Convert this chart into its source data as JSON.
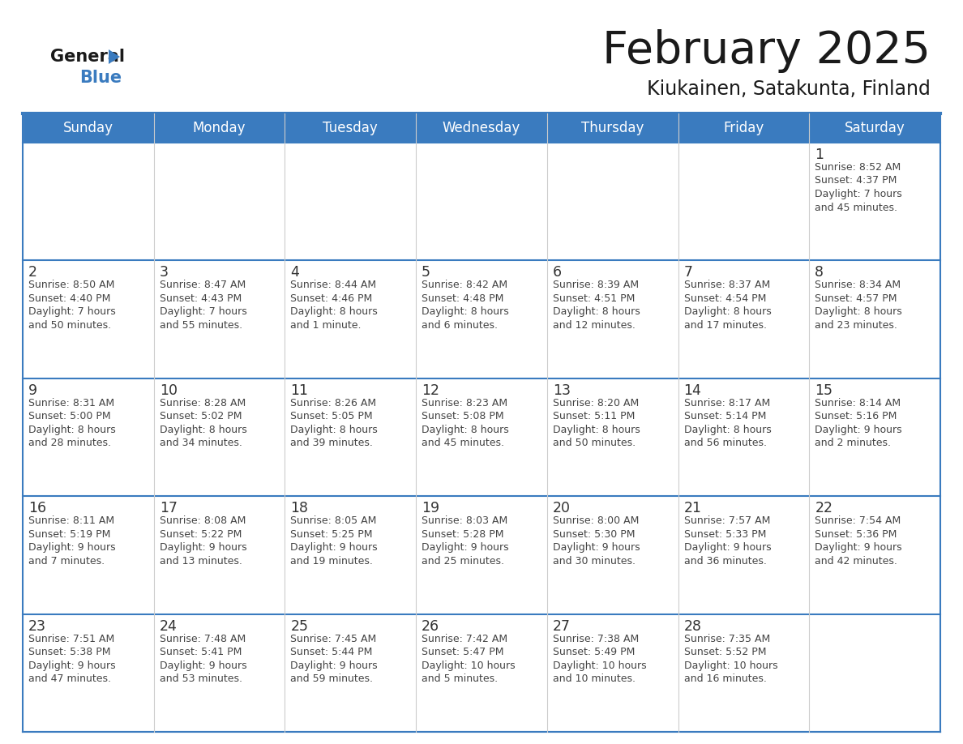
{
  "title": "February 2025",
  "subtitle": "Kiukainen, Satakunta, Finland",
  "days_of_week": [
    "Sunday",
    "Monday",
    "Tuesday",
    "Wednesday",
    "Thursday",
    "Friday",
    "Saturday"
  ],
  "header_bg": "#3a7bbf",
  "header_text": "#ffffff",
  "cell_bg": "#ffffff",
  "border_color": "#3a7bbf",
  "row_separator_color": "#3a7bbf",
  "text_color": "#444444",
  "day_number_color": "#333333",
  "title_color": "#1a1a1a",
  "logo_general_color": "#1a1a1a",
  "logo_blue_color": "#3a7bbf",
  "logo_triangle_color": "#3a7bbf",
  "calendar_data": [
    [
      null,
      null,
      null,
      null,
      null,
      null,
      {
        "day": 1,
        "sunrise": "8:52 AM",
        "sunset": "4:37 PM",
        "daylight": "7 hours and 45 minutes"
      }
    ],
    [
      {
        "day": 2,
        "sunrise": "8:50 AM",
        "sunset": "4:40 PM",
        "daylight": "7 hours and 50 minutes"
      },
      {
        "day": 3,
        "sunrise": "8:47 AM",
        "sunset": "4:43 PM",
        "daylight": "7 hours and 55 minutes"
      },
      {
        "day": 4,
        "sunrise": "8:44 AM",
        "sunset": "4:46 PM",
        "daylight": "8 hours and 1 minute"
      },
      {
        "day": 5,
        "sunrise": "8:42 AM",
        "sunset": "4:48 PM",
        "daylight": "8 hours and 6 minutes"
      },
      {
        "day": 6,
        "sunrise": "8:39 AM",
        "sunset": "4:51 PM",
        "daylight": "8 hours and 12 minutes"
      },
      {
        "day": 7,
        "sunrise": "8:37 AM",
        "sunset": "4:54 PM",
        "daylight": "8 hours and 17 minutes"
      },
      {
        "day": 8,
        "sunrise": "8:34 AM",
        "sunset": "4:57 PM",
        "daylight": "8 hours and 23 minutes"
      }
    ],
    [
      {
        "day": 9,
        "sunrise": "8:31 AM",
        "sunset": "5:00 PM",
        "daylight": "8 hours and 28 minutes"
      },
      {
        "day": 10,
        "sunrise": "8:28 AM",
        "sunset": "5:02 PM",
        "daylight": "8 hours and 34 minutes"
      },
      {
        "day": 11,
        "sunrise": "8:26 AM",
        "sunset": "5:05 PM",
        "daylight": "8 hours and 39 minutes"
      },
      {
        "day": 12,
        "sunrise": "8:23 AM",
        "sunset": "5:08 PM",
        "daylight": "8 hours and 45 minutes"
      },
      {
        "day": 13,
        "sunrise": "8:20 AM",
        "sunset": "5:11 PM",
        "daylight": "8 hours and 50 minutes"
      },
      {
        "day": 14,
        "sunrise": "8:17 AM",
        "sunset": "5:14 PM",
        "daylight": "8 hours and 56 minutes"
      },
      {
        "day": 15,
        "sunrise": "8:14 AM",
        "sunset": "5:16 PM",
        "daylight": "9 hours and 2 minutes"
      }
    ],
    [
      {
        "day": 16,
        "sunrise": "8:11 AM",
        "sunset": "5:19 PM",
        "daylight": "9 hours and 7 minutes"
      },
      {
        "day": 17,
        "sunrise": "8:08 AM",
        "sunset": "5:22 PM",
        "daylight": "9 hours and 13 minutes"
      },
      {
        "day": 18,
        "sunrise": "8:05 AM",
        "sunset": "5:25 PM",
        "daylight": "9 hours and 19 minutes"
      },
      {
        "day": 19,
        "sunrise": "8:03 AM",
        "sunset": "5:28 PM",
        "daylight": "9 hours and 25 minutes"
      },
      {
        "day": 20,
        "sunrise": "8:00 AM",
        "sunset": "5:30 PM",
        "daylight": "9 hours and 30 minutes"
      },
      {
        "day": 21,
        "sunrise": "7:57 AM",
        "sunset": "5:33 PM",
        "daylight": "9 hours and 36 minutes"
      },
      {
        "day": 22,
        "sunrise": "7:54 AM",
        "sunset": "5:36 PM",
        "daylight": "9 hours and 42 minutes"
      }
    ],
    [
      {
        "day": 23,
        "sunrise": "7:51 AM",
        "sunset": "5:38 PM",
        "daylight": "9 hours and 47 minutes"
      },
      {
        "day": 24,
        "sunrise": "7:48 AM",
        "sunset": "5:41 PM",
        "daylight": "9 hours and 53 minutes"
      },
      {
        "day": 25,
        "sunrise": "7:45 AM",
        "sunset": "5:44 PM",
        "daylight": "9 hours and 59 minutes"
      },
      {
        "day": 26,
        "sunrise": "7:42 AM",
        "sunset": "5:47 PM",
        "daylight": "10 hours and 5 minutes"
      },
      {
        "day": 27,
        "sunrise": "7:38 AM",
        "sunset": "5:49 PM",
        "daylight": "10 hours and 10 minutes"
      },
      {
        "day": 28,
        "sunrise": "7:35 AM",
        "sunset": "5:52 PM",
        "daylight": "10 hours and 16 minutes"
      },
      null
    ]
  ]
}
